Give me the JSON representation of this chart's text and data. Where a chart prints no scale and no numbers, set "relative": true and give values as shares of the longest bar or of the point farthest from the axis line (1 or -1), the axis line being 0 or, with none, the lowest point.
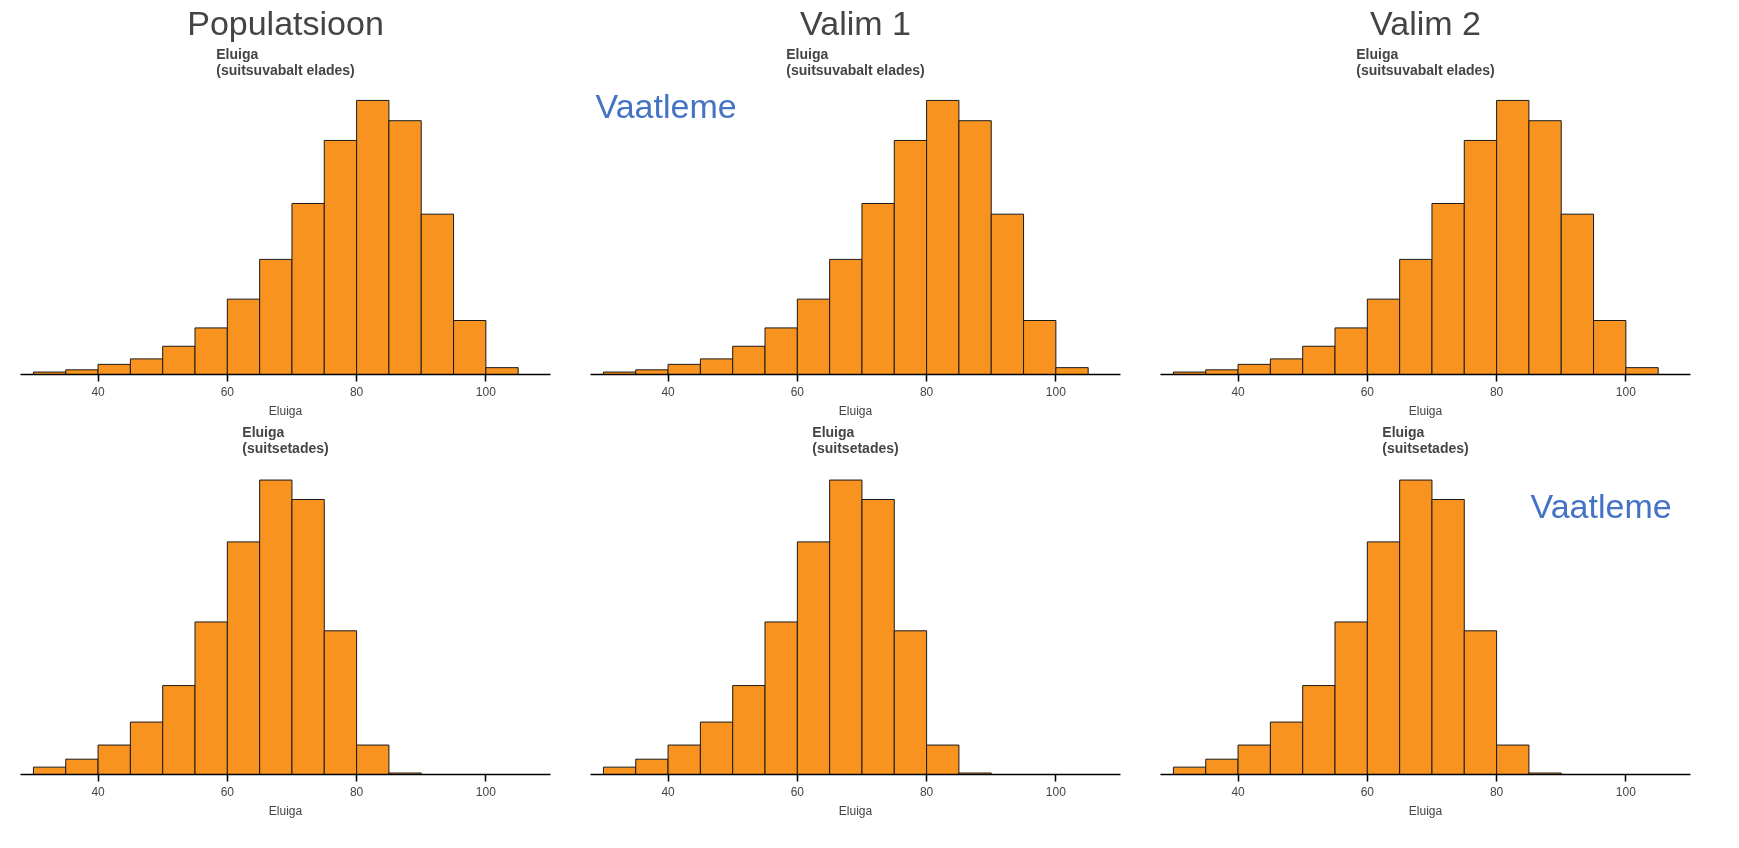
{
  "chart_data": [
    {
      "type": "bar",
      "title": "Populatsioon",
      "subtitle": "Eluiga\n(suitsuvabalt elades)",
      "xlabel": "Eluiga",
      "relative": true,
      "color": "#f7931e",
      "x": [
        32.5,
        37.5,
        42.5,
        47.5,
        52.5,
        57.5,
        62.5,
        67.5,
        72.5,
        77.5,
        82.5,
        87.5,
        92.5,
        97.5,
        102.5
      ],
      "values": [
        0.009,
        0.017,
        0.037,
        0.057,
        0.103,
        0.17,
        0.275,
        0.42,
        0.624,
        0.854,
        1,
        0.926,
        0.585,
        0.197,
        0.025
      ],
      "xlim": [
        28,
        110
      ],
      "xticks": [
        40,
        60,
        80,
        100
      ]
    },
    {
      "type": "bar",
      "title": "Valim 1",
      "subtitle": "Eluiga\n(suitsuvabalt elades)",
      "xlabel": "Eluiga",
      "relative": true,
      "color": "#f7931e",
      "x": [
        32.5,
        37.5,
        42.5,
        47.5,
        52.5,
        57.5,
        62.5,
        67.5,
        72.5,
        77.5,
        82.5,
        87.5,
        92.5,
        97.5,
        102.5
      ],
      "values": [
        0.009,
        0.017,
        0.037,
        0.057,
        0.103,
        0.17,
        0.275,
        0.42,
        0.624,
        0.854,
        1,
        0.926,
        0.585,
        0.197,
        0.025
      ],
      "xlim": [
        28,
        110
      ],
      "xticks": [
        40,
        60,
        80,
        100
      ],
      "annotations": [
        "Vaatleme"
      ]
    },
    {
      "type": "bar",
      "title": "Valim 2",
      "subtitle": "Eluiga\n(suitsuvabalt elades)",
      "xlabel": "Eluiga",
      "relative": true,
      "color": "#f7931e",
      "x": [
        32.5,
        37.5,
        42.5,
        47.5,
        52.5,
        57.5,
        62.5,
        67.5,
        72.5,
        77.5,
        82.5,
        87.5,
        92.5,
        97.5,
        102.5
      ],
      "values": [
        0.009,
        0.017,
        0.037,
        0.057,
        0.103,
        0.17,
        0.275,
        0.42,
        0.624,
        0.854,
        1,
        0.926,
        0.585,
        0.197,
        0.025
      ],
      "xlim": [
        28,
        110
      ],
      "xticks": [
        40,
        60,
        80,
        100
      ]
    },
    {
      "type": "bar",
      "title": "Eluiga\n(suitsetades)",
      "xlabel": "Eluiga",
      "relative": true,
      "color": "#f7931e",
      "x": [
        32.5,
        37.5,
        42.5,
        47.5,
        52.5,
        57.5,
        62.5,
        67.5,
        72.5,
        77.5,
        82.5,
        87.5
      ],
      "values": [
        0.025,
        0.052,
        0.1,
        0.178,
        0.302,
        0.518,
        0.79,
        1,
        0.934,
        0.488,
        0.1,
        0.005
      ],
      "xlim": [
        28,
        110
      ],
      "xticks": [
        40,
        60,
        80,
        100
      ]
    },
    {
      "type": "bar",
      "title": "Eluiga\n(suitsetades)",
      "xlabel": "Eluiga",
      "relative": true,
      "color": "#f7931e",
      "x": [
        32.5,
        37.5,
        42.5,
        47.5,
        52.5,
        57.5,
        62.5,
        67.5,
        72.5,
        77.5,
        82.5,
        87.5
      ],
      "values": [
        0.025,
        0.052,
        0.1,
        0.178,
        0.302,
        0.518,
        0.79,
        1,
        0.934,
        0.488,
        0.1,
        0.005
      ],
      "xlim": [
        28,
        110
      ],
      "xticks": [
        40,
        60,
        80,
        100
      ]
    },
    {
      "type": "bar",
      "title": "Eluiga\n(suitsetades)",
      "xlabel": "Eluiga",
      "relative": true,
      "color": "#f7931e",
      "x": [
        32.5,
        37.5,
        42.5,
        47.5,
        52.5,
        57.5,
        62.5,
        67.5,
        72.5,
        77.5,
        82.5,
        87.5
      ],
      "values": [
        0.025,
        0.052,
        0.1,
        0.178,
        0.302,
        0.518,
        0.79,
        1,
        0.934,
        0.488,
        0.1,
        0.005
      ],
      "xlim": [
        28,
        110
      ],
      "xticks": [
        40,
        60,
        80,
        100
      ],
      "annotations": [
        "Vaatleme"
      ]
    }
  ]
}
